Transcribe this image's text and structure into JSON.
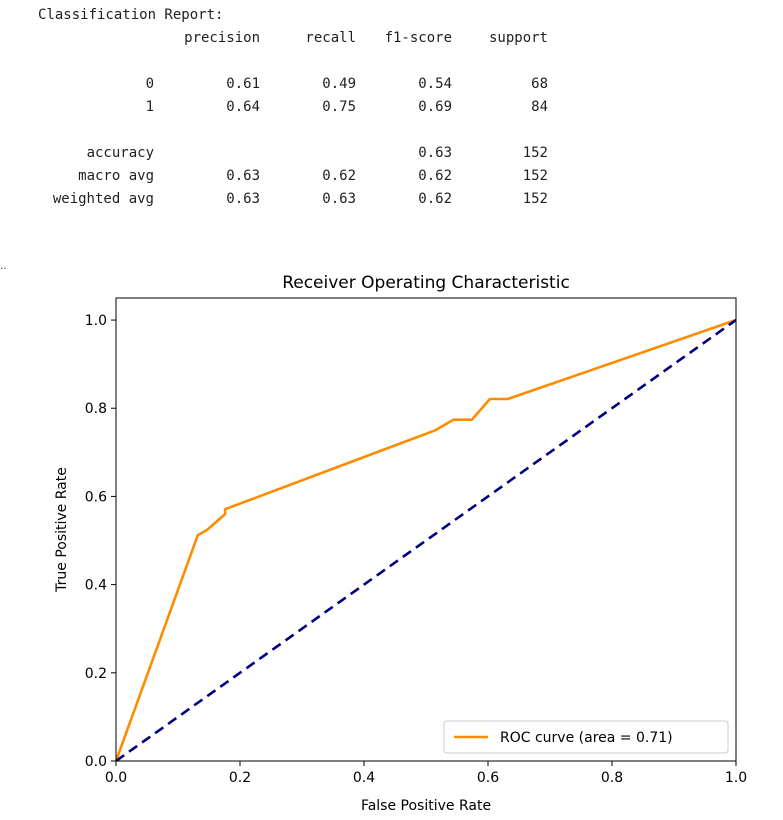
{
  "report": {
    "title": "Classification Report:",
    "headers": [
      "precision",
      "recall",
      "f1-score",
      "support"
    ],
    "rows": [
      {
        "label": "0",
        "precision": "0.61",
        "recall": "0.49",
        "f1": "0.54",
        "support": "68"
      },
      {
        "label": "1",
        "precision": "0.64",
        "recall": "0.75",
        "f1": "0.69",
        "support": "84"
      }
    ],
    "summary": [
      {
        "label": "accuracy",
        "precision": "",
        "recall": "",
        "f1": "0.63",
        "support": "152"
      },
      {
        "label": "macro avg",
        "precision": "0.63",
        "recall": "0.62",
        "f1": "0.62",
        "support": "152"
      },
      {
        "label": "weighted avg",
        "precision": "0.63",
        "recall": "0.63",
        "f1": "0.62",
        "support": "152"
      }
    ]
  },
  "output_marker": "..",
  "chart_data": {
    "type": "line",
    "title": "Receiver Operating Characteristic",
    "xlabel": "False Positive Rate",
    "ylabel": "True Positive Rate",
    "xlim": [
      0.0,
      1.0
    ],
    "ylim": [
      0.0,
      1.05
    ],
    "xticks": [
      "0.0",
      "0.2",
      "0.4",
      "0.6",
      "0.8",
      "1.0"
    ],
    "yticks": [
      "0.0",
      "0.2",
      "0.4",
      "0.6",
      "0.8",
      "1.0"
    ],
    "grid": false,
    "legend": "lower right",
    "series": [
      {
        "name": "ROC curve (area = 0.71)",
        "color": "#ff8c00",
        "style": "solid",
        "x": [
          0.0,
          0.132,
          0.147,
          0.176,
          0.176,
          0.515,
          0.544,
          0.574,
          0.603,
          0.632,
          1.0
        ],
        "y": [
          0.0,
          0.512,
          0.524,
          0.56,
          0.571,
          0.75,
          0.774,
          0.774,
          0.821,
          0.821,
          1.0
        ]
      },
      {
        "color": "#000080",
        "style": "dashed",
        "x": [
          0.0,
          1.0
        ],
        "y": [
          0.0,
          1.0
        ]
      }
    ]
  }
}
